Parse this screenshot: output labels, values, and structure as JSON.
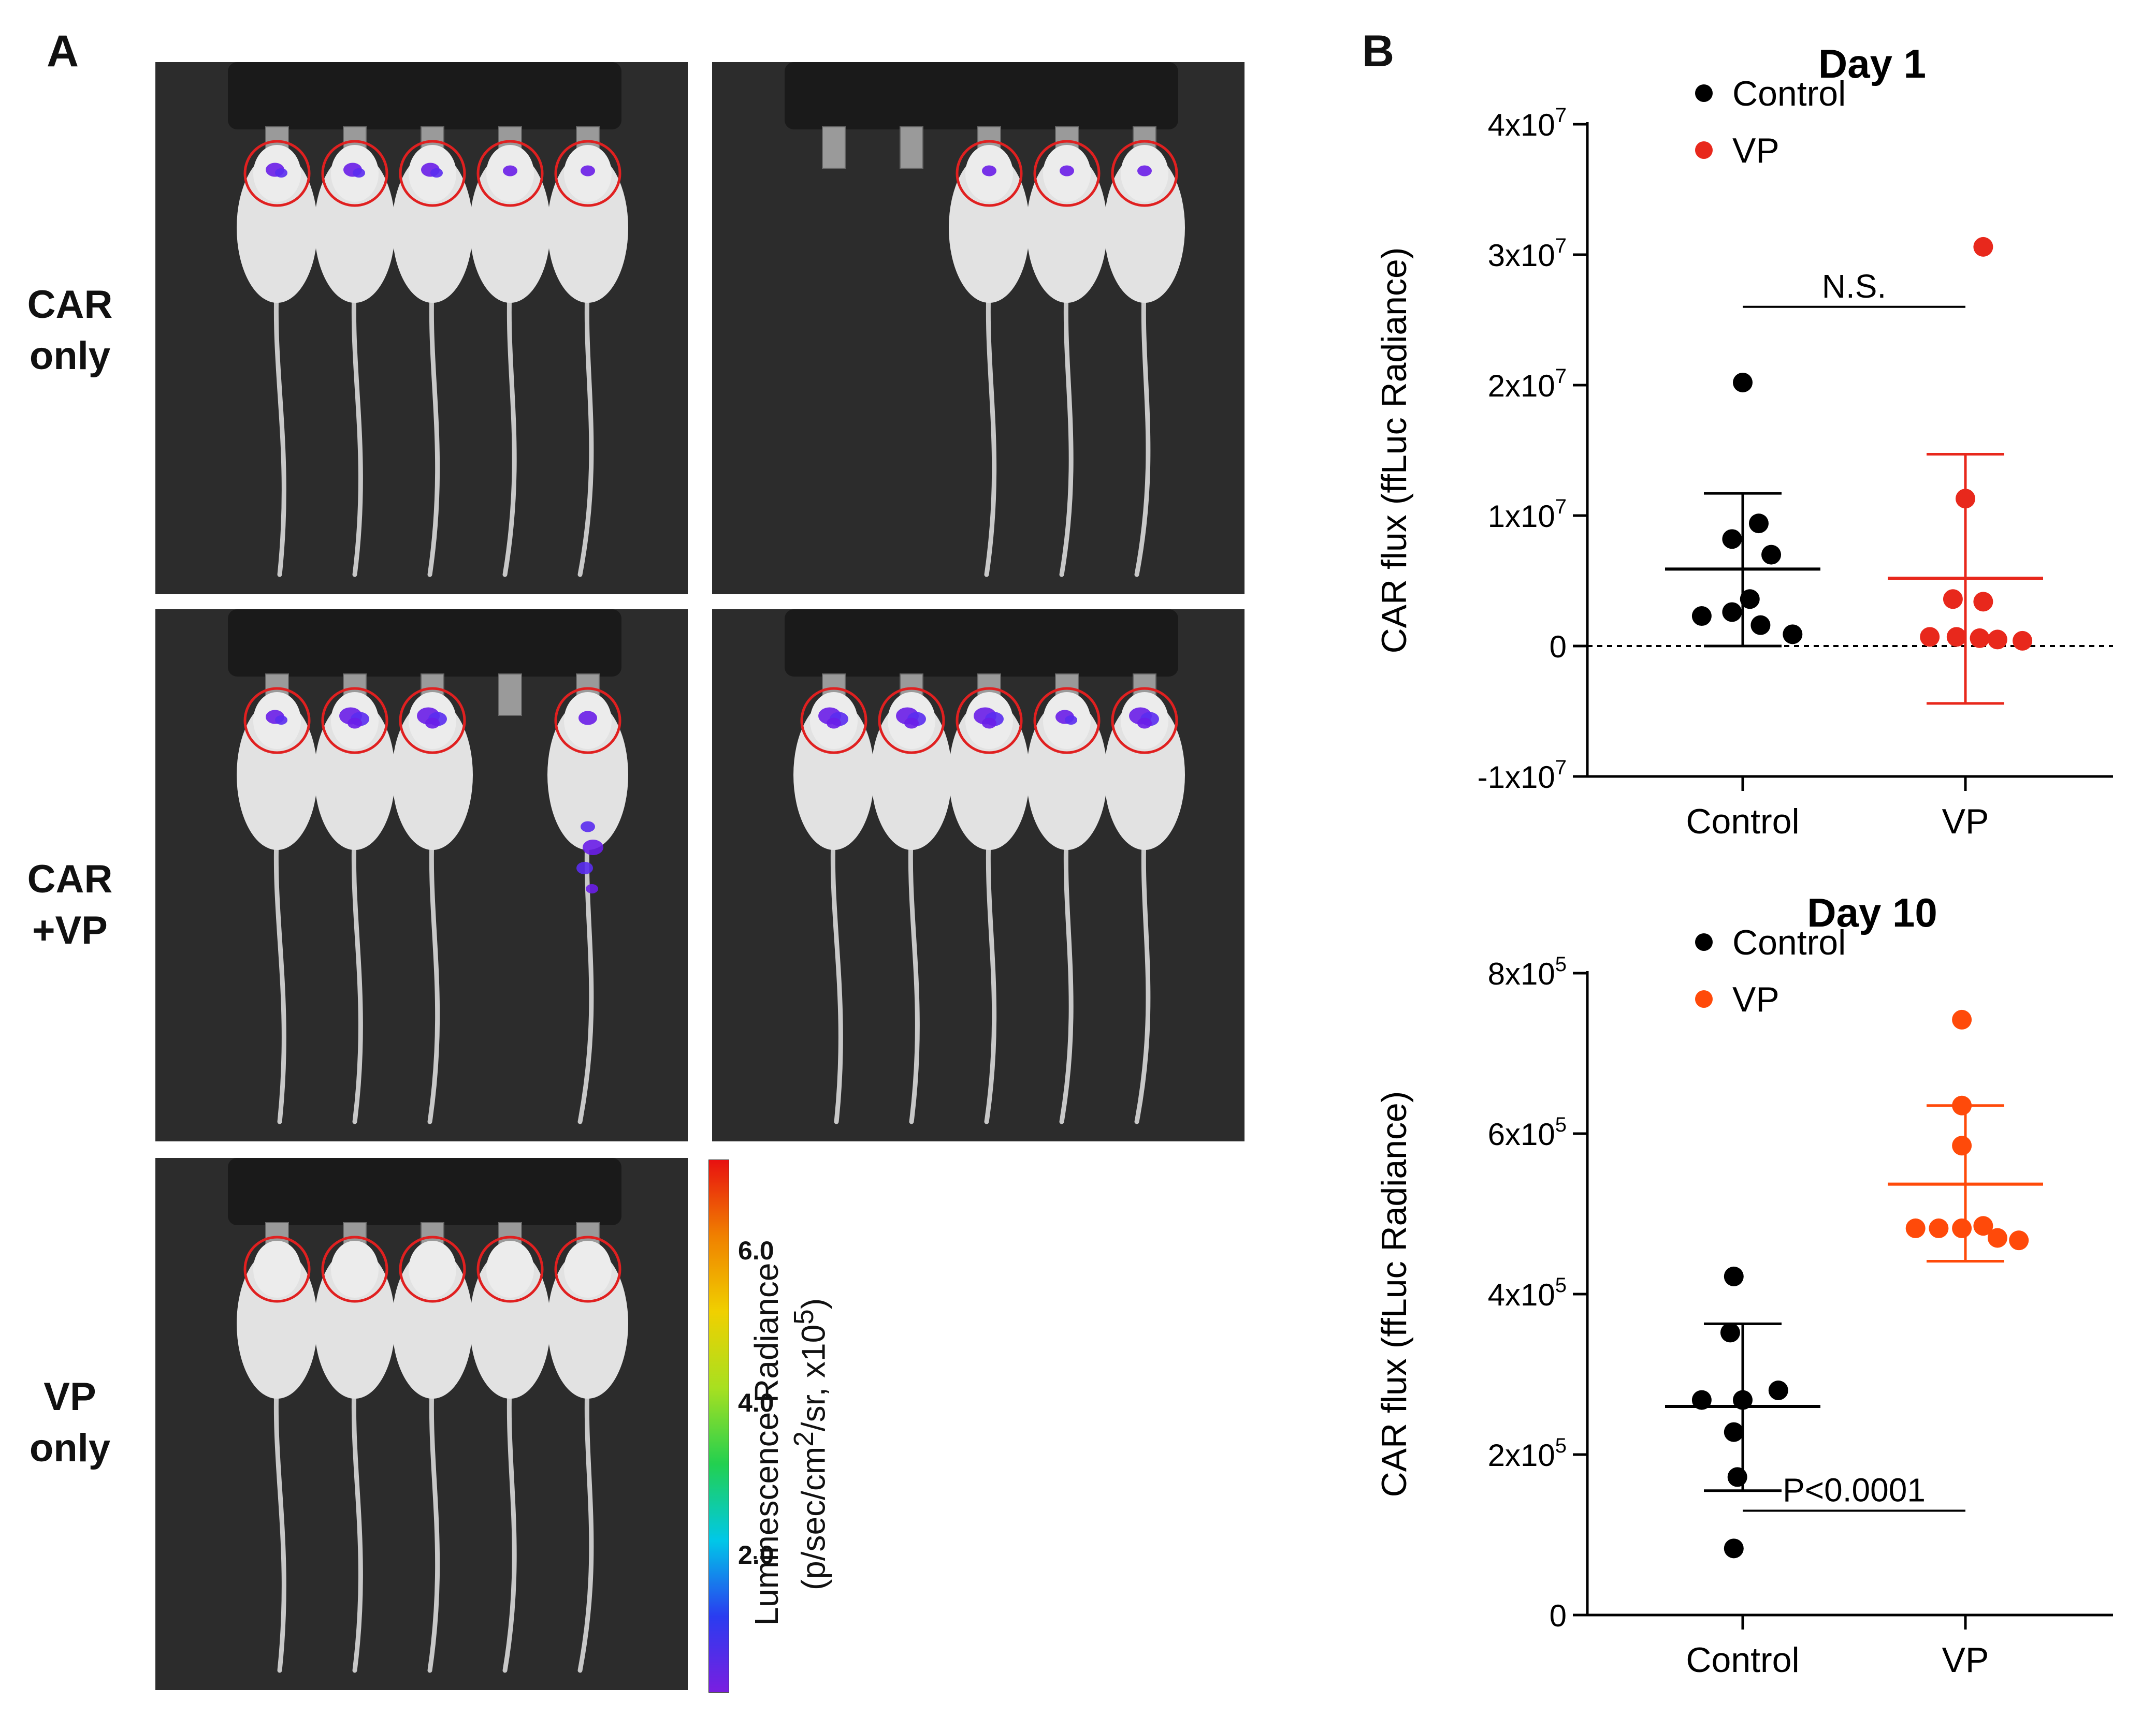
{
  "panel_a": {
    "letter": "A",
    "rows": [
      {
        "line1": "CAR",
        "line2": "only"
      },
      {
        "line1": "CAR",
        "line2": "+VP"
      },
      {
        "line1": "VP",
        "line2": "only"
      }
    ],
    "colorbar": {
      "ticks": [
        "6.0",
        "4.0",
        "2.0"
      ],
      "tick_values": [
        6.0,
        4.0,
        2.0
      ],
      "range": [
        0.2,
        7.2
      ],
      "title_line1": "Luminescence Radiance",
      "title_line2_pre": "(p/sec/cm",
      "title_line2_sup": "2",
      "title_line2_mid": "/sr, x10",
      "title_line2_sup2": "5",
      "title_line2_post": ")",
      "colors": [
        "#7a1ee0",
        "#2a3cf0",
        "#00c8e8",
        "#22d050",
        "#a8e020",
        "#f0d000",
        "#f08000",
        "#e81010"
      ]
    },
    "photos": [
      {
        "mice": [
          1,
          1,
          1,
          1,
          1
        ],
        "signal": [
          2,
          2,
          2,
          1,
          1
        ]
      },
      {
        "mice": [
          0,
          0,
          1,
          1,
          1
        ],
        "signal": [
          0,
          0,
          1,
          1,
          1
        ]
      },
      {
        "mice": [
          1,
          1,
          1,
          0,
          1
        ],
        "signal": [
          2,
          3,
          3,
          0,
          4
        ]
      },
      {
        "mice": [
          1,
          1,
          1,
          1,
          1
        ],
        "signal": [
          3,
          3,
          3,
          2,
          3
        ]
      },
      {
        "mice": [
          1,
          1,
          1,
          1,
          1
        ],
        "signal": [
          0,
          0,
          0,
          0,
          0
        ]
      }
    ]
  },
  "panel_b": {
    "letter": "B"
  },
  "chart_data": [
    {
      "type": "scatter",
      "title": "Day 1",
      "ylabel": "CAR flux (ffLuc Radiance)",
      "xlabel": "",
      "categories": [
        "Control",
        "VP"
      ],
      "ylim": [
        -10000000,
        40000000
      ],
      "yticks": [
        {
          "value": 40000000,
          "base": "4x10",
          "exp": "7"
        },
        {
          "value": 30000000,
          "base": "3x10",
          "exp": "7"
        },
        {
          "value": 20000000,
          "base": "2x10",
          "exp": "7"
        },
        {
          "value": 10000000,
          "base": "1x10",
          "exp": "7"
        },
        {
          "value": 0,
          "base": "0",
          "exp": ""
        },
        {
          "value": -10000000,
          "base": "-1x10",
          "exp": "7"
        }
      ],
      "zero_line": true,
      "series": [
        {
          "name": "Control",
          "color": "#000000",
          "points": [
            {
              "dx": 0.0,
              "y": 20200000
            },
            {
              "dx": 0.09,
              "y": 9400000
            },
            {
              "dx": -0.06,
              "y": 8200000
            },
            {
              "dx": 0.16,
              "y": 7000000
            },
            {
              "dx": 0.04,
              "y": 3600000
            },
            {
              "dx": -0.06,
              "y": 2600000
            },
            {
              "dx": -0.23,
              "y": 2300000
            },
            {
              "dx": 0.1,
              "y": 1600000
            },
            {
              "dx": 0.28,
              "y": 900000
            }
          ],
          "mean": 5900000,
          "sd_low": 0,
          "sd_high": 11700000
        },
        {
          "name": "VP",
          "color": "#e8281c",
          "points": [
            {
              "dx": 0.1,
              "y": 30600000
            },
            {
              "dx": 0.0,
              "y": 11300000
            },
            {
              "dx": -0.07,
              "y": 3600000
            },
            {
              "dx": 0.1,
              "y": 3400000
            },
            {
              "dx": -0.2,
              "y": 700000
            },
            {
              "dx": -0.05,
              "y": 700000
            },
            {
              "dx": 0.08,
              "y": 600000
            },
            {
              "dx": 0.18,
              "y": 500000
            },
            {
              "dx": 0.32,
              "y": 400000
            }
          ],
          "mean": 5200000,
          "sd_low": -4400000,
          "sd_high": 14700000
        }
      ],
      "annotation": {
        "text": "N.S.",
        "y": 26000000
      }
    },
    {
      "type": "scatter",
      "title": "Day 10",
      "ylabel": "CAR flux (ffLuc Radiance)",
      "xlabel": "",
      "categories": [
        "Control",
        "VP"
      ],
      "ylim": [
        0,
        800000
      ],
      "yticks": [
        {
          "value": 800000,
          "base": "8x10",
          "exp": "5"
        },
        {
          "value": 600000,
          "base": "6x10",
          "exp": "5"
        },
        {
          "value": 400000,
          "base": "4x10",
          "exp": "5"
        },
        {
          "value": 200000,
          "base": "2x10",
          "exp": "5"
        },
        {
          "value": 0,
          "base": "0",
          "exp": ""
        }
      ],
      "zero_line": false,
      "series": [
        {
          "name": "Control",
          "color": "#000000",
          "points": [
            {
              "dx": -0.05,
              "y": 422000
            },
            {
              "dx": -0.07,
              "y": 352000
            },
            {
              "dx": -0.23,
              "y": 268000
            },
            {
              "dx": 0.0,
              "y": 268000
            },
            {
              "dx": 0.2,
              "y": 280000
            },
            {
              "dx": -0.05,
              "y": 228000
            },
            {
              "dx": -0.03,
              "y": 172000
            },
            {
              "dx": -0.05,
              "y": 83000
            }
          ],
          "mean": 260000,
          "sd_low": 155000,
          "sd_high": 363000
        },
        {
          "name": "VP",
          "color": "#ff4a0a",
          "points": [
            {
              "dx": -0.02,
              "y": 742000
            },
            {
              "dx": -0.02,
              "y": 635000
            },
            {
              "dx": -0.02,
              "y": 585000
            },
            {
              "dx": -0.28,
              "y": 482000
            },
            {
              "dx": -0.15,
              "y": 482000
            },
            {
              "dx": -0.02,
              "y": 482000
            },
            {
              "dx": 0.1,
              "y": 485000
            },
            {
              "dx": 0.18,
              "y": 470000
            },
            {
              "dx": 0.3,
              "y": 467000
            }
          ],
          "mean": 537000,
          "sd_low": 441000,
          "sd_high": 635000
        }
      ],
      "annotation": {
        "text": "P<0.0001",
        "y": 130000
      }
    }
  ]
}
